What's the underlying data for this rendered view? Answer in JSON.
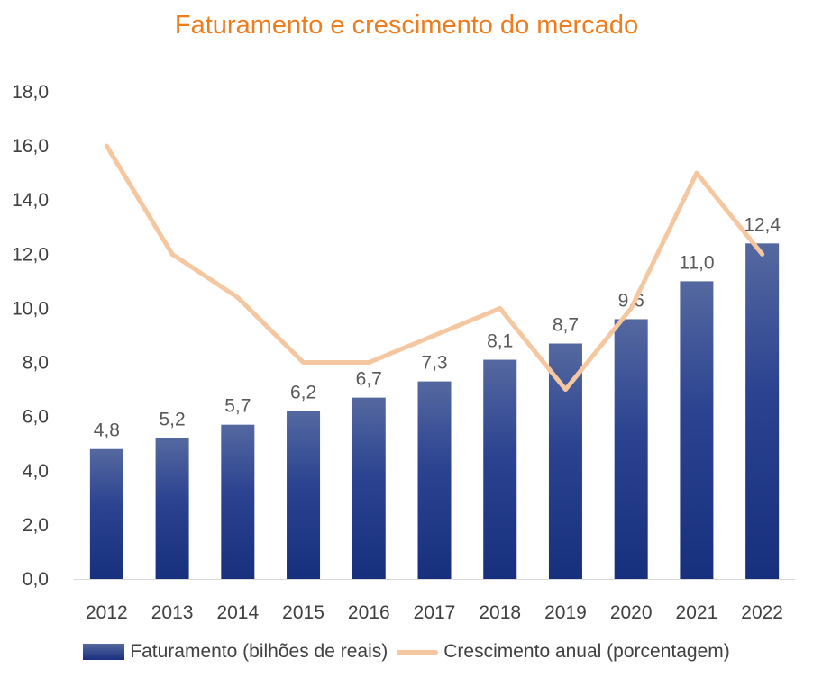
{
  "chart_data": {
    "type": "bar",
    "title": "Faturamento e crescimento do mercado",
    "categories": [
      "2012",
      "2013",
      "2014",
      "2015",
      "2016",
      "2017",
      "2018",
      "2019",
      "2020",
      "2021",
      "2022"
    ],
    "series": [
      {
        "name": "Faturamento (bilhões de reais)",
        "type": "bar",
        "values": [
          4.8,
          5.2,
          5.7,
          6.2,
          6.7,
          7.3,
          8.1,
          8.7,
          9.6,
          11.0,
          12.4
        ],
        "labels": [
          "4,8",
          "5,2",
          "5,7",
          "6,2",
          "6,7",
          "7,3",
          "8,1",
          "8,7",
          "9,6",
          "11,0",
          "12,4"
        ],
        "color": "#1F3A8A"
      },
      {
        "name": "Crescimento anual (porcentagem)",
        "type": "line",
        "values": [
          16.0,
          12.0,
          10.4,
          8.0,
          8.0,
          9.0,
          10.0,
          7.0,
          10.0,
          15.0,
          12.0
        ],
        "color": "#F5C7A0"
      }
    ],
    "ylim": [
      0,
      18
    ],
    "yticks": [
      "0,0",
      "2,0",
      "4,0",
      "6,0",
      "8,0",
      "10,0",
      "12,0",
      "14,0",
      "16,0",
      "18,0"
    ],
    "xlabel": "",
    "ylabel": "",
    "grid": false,
    "legend": "bottom",
    "title_color": "#EE7D1E"
  }
}
